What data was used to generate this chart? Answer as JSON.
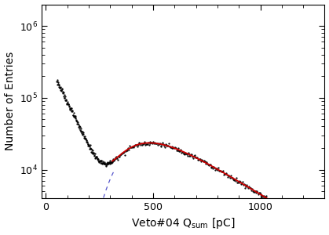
{
  "title": "",
  "xlabel": "Veto#04 Q$_{\\mathrm{sum}}$ [pC]",
  "ylabel": "Number of Entries",
  "xlim": [
    -20,
    1300
  ],
  "ylim_log": [
    4000,
    2000000
  ],
  "bg_color": "#ffffff",
  "hist_color": "#000000",
  "fit_color_red": "#cc0000",
  "fit_color_blue": "#5555cc",
  "landau_mpv": 490,
  "landau_sigma": 120,
  "landau_amplitude": 11500000.0,
  "noise_amplitude": 350000.0,
  "noise_decay": 0.014,
  "fit_x_start": 310,
  "fit_x_end": 1280,
  "blue_dashed_x_start": 210,
  "blue_dashed_x_end": 370,
  "tick_label_fontsize": 9,
  "axis_label_fontsize": 10
}
